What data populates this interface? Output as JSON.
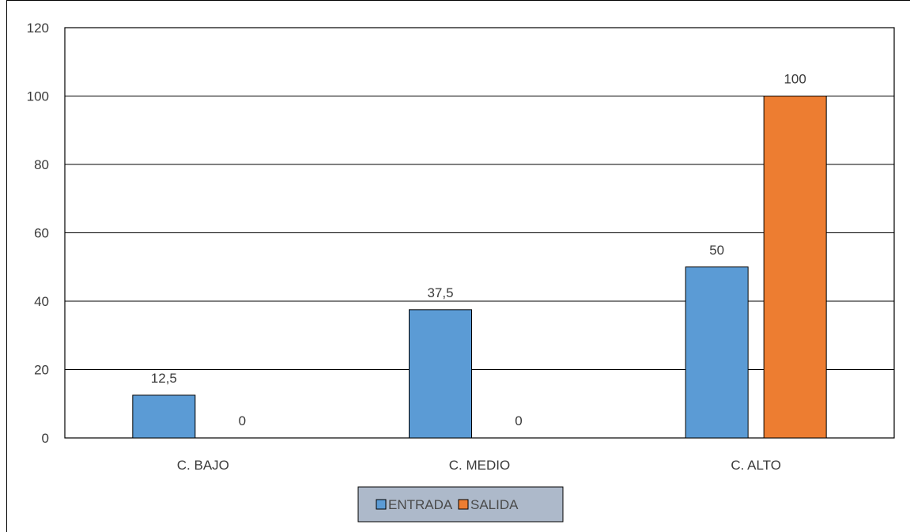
{
  "chart_data": {
    "type": "bar",
    "title": "",
    "xlabel": "",
    "ylabel": "",
    "categories": [
      "C. BAJO",
      "C. MEDIO",
      "C. ALTO"
    ],
    "series": [
      {
        "name": "ENTRADA",
        "values": [
          12.5,
          37.5,
          50
        ],
        "labels": [
          "12,5",
          "37,5",
          "50"
        ],
        "color": "#5b9bd5"
      },
      {
        "name": "SALIDA",
        "values": [
          0,
          0,
          100
        ],
        "labels": [
          "0",
          "0",
          "100"
        ],
        "color": "#ed7d31"
      }
    ],
    "ylim": [
      0,
      120
    ],
    "yticks": [
      0,
      20,
      40,
      60,
      80,
      100,
      120
    ],
    "grid": true,
    "legend_position": "bottom",
    "legend_background": "#adb9ca"
  }
}
